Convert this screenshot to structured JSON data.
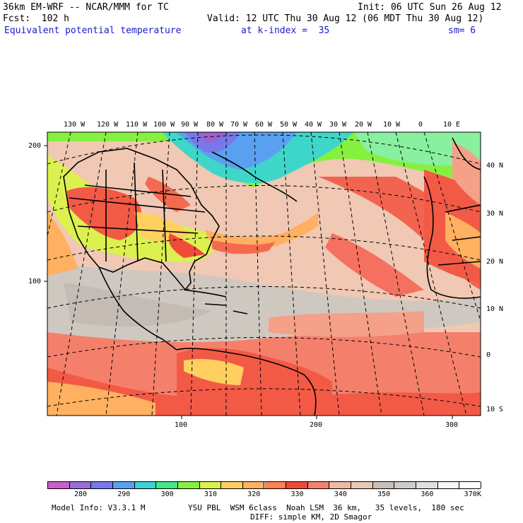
{
  "header": {
    "title_left": "36km EM-WRF -- NCAR/MMM for TC",
    "init": "Init: 06 UTC Sun 26 Aug 12",
    "fcst": "Fcst:  102 h",
    "valid": "Valid: 12 UTC Thu 30 Aug 12 (06 MDT Thu 30 Aug 12)",
    "field": "Equivalent potential temperature",
    "level": "at k-index =  35",
    "smoothing": "sm= 6"
  },
  "map": {
    "top_lon_labels": [
      "130 W",
      "120 W",
      "110 W",
      "100 W",
      "90 W",
      "80 W",
      "70 W",
      "60 W",
      "50 W",
      "40 W",
      "30 W",
      "20 W",
      "10 W",
      "0",
      "10 E"
    ],
    "right_lat_labels": [
      "40 N",
      "30 N",
      "20 N",
      "10 N",
      "0",
      "10 S"
    ],
    "left_axis_labels": [
      "200",
      "100"
    ],
    "bottom_axis_labels": [
      "100",
      "200",
      "300"
    ]
  },
  "legend": {
    "labels": [
      "280",
      "290",
      "300",
      "310",
      "320",
      "330",
      "340",
      "350",
      "360",
      "370"
    ],
    "unit": "K",
    "colors": [
      "#c85ec8",
      "#9a6ed8",
      "#7878e8",
      "#5aa0f0",
      "#3ed2d2",
      "#44e888",
      "#88f044",
      "#dcf050",
      "#ffd060",
      "#ffb060",
      "#ff8050",
      "#f04a3a",
      "#f48070",
      "#f0b8a0",
      "#e8c8b8",
      "#c8c0b8",
      "#cccccc",
      "#e0e0e0",
      "#f6f6f6",
      "#ffffff"
    ]
  },
  "footer": {
    "model_info": "Model Info: V3.3.1 M",
    "physics_line1": "YSU PBL  WSM 6class  Noah LSM  36 km,   35 levels,  180 sec",
    "physics_line2": "DIFF: simple KM, 2D Smagor"
  }
}
